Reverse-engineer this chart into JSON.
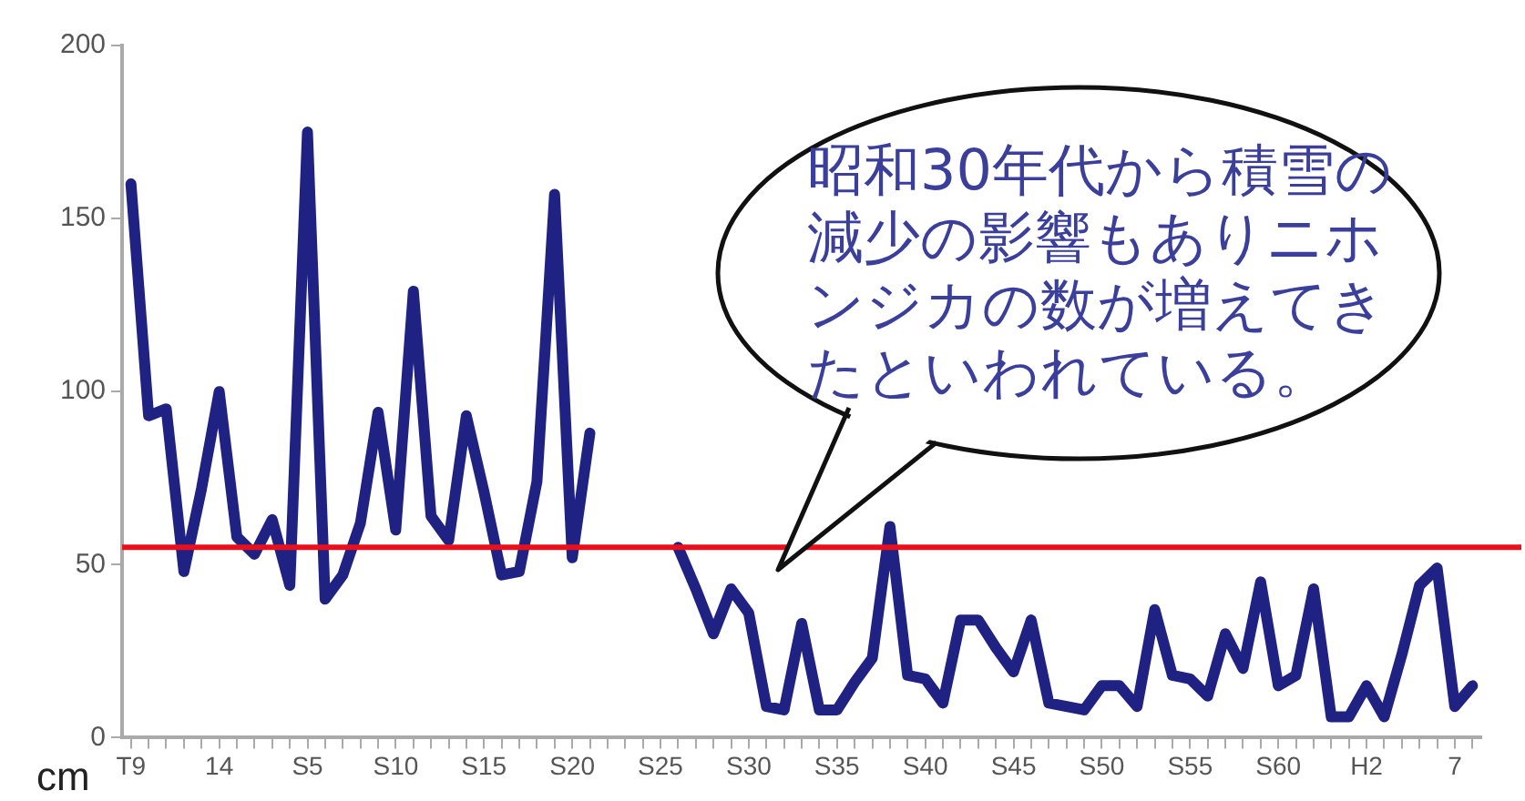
{
  "chart_data": {
    "type": "line",
    "ylabel": "cm",
    "categories": [
      "T9",
      null,
      null,
      null,
      null,
      "14",
      null,
      null,
      null,
      null,
      "S5",
      null,
      null,
      null,
      null,
      "S10",
      null,
      null,
      null,
      null,
      "S15",
      null,
      null,
      null,
      null,
      "S20",
      null,
      null,
      null,
      null,
      "S25",
      null,
      null,
      null,
      null,
      "S30",
      null,
      null,
      null,
      null,
      "S35",
      null,
      null,
      null,
      null,
      "S40",
      null,
      null,
      null,
      null,
      "S45",
      null,
      null,
      null,
      null,
      "S50",
      null,
      null,
      null,
      null,
      "S55",
      null,
      null,
      null,
      null,
      "S60",
      null,
      null,
      null,
      null,
      "H2",
      null,
      null,
      null,
      null,
      "7",
      null
    ],
    "series": [
      {
        "color": "#1f2283",
        "values": [
          160,
          93,
          95,
          48,
          72,
          100,
          58,
          53,
          63,
          44,
          175,
          40,
          47,
          62,
          94,
          60,
          129,
          64,
          57,
          93,
          71,
          47,
          48,
          74,
          157,
          52,
          88,
          null,
          null,
          null,
          null,
          55,
          43,
          30,
          43,
          36,
          9,
          8,
          33,
          8,
          8,
          16,
          23,
          61,
          18,
          17,
          10,
          34,
          34,
          26,
          19,
          34,
          10,
          9,
          8,
          15,
          15,
          9,
          37,
          18,
          17,
          12,
          30,
          20,
          45,
          15,
          18,
          43,
          6,
          6,
          15,
          6,
          24,
          44,
          49,
          9,
          15
        ]
      }
    ],
    "ylim": [
      0,
      200
    ],
    "yticks": [
      0,
      50,
      100,
      150,
      200
    ],
    "ref_lines": [
      {
        "axis": "y",
        "value": 55,
        "color": "#e8101c"
      }
    ],
    "annotations": [
      "昭和30年代から積雪の減少の影響もありニホンジカの数が増えてきたといわれている。"
    ]
  }
}
